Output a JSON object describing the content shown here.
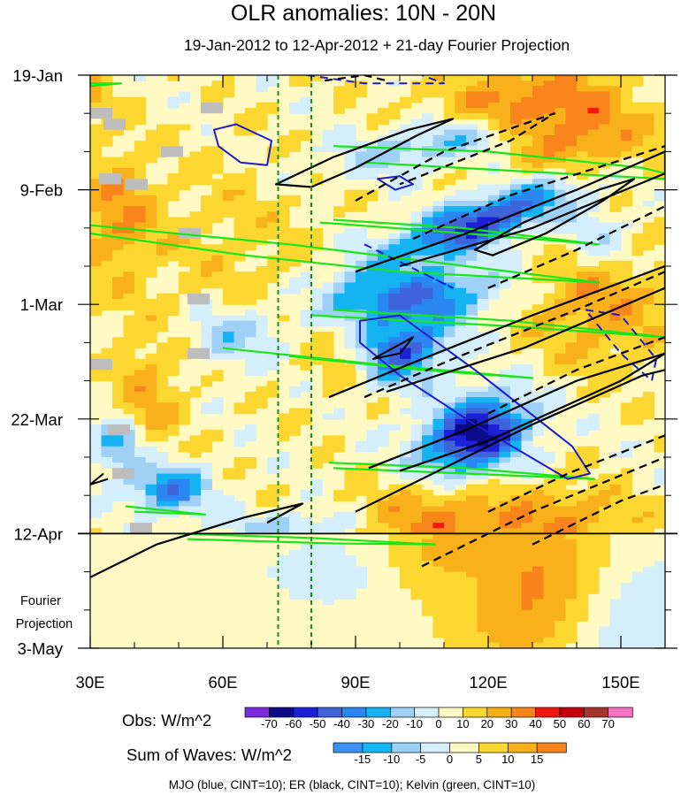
{
  "chart_data": {
    "type": "heatmap",
    "title": "OLR anomalies: 10N - 20N",
    "subtitle": "19-Jan-2012 to 12-Apr-2012 + 21-day Fourier Projection",
    "x_axis": {
      "range": [
        30,
        160
      ],
      "ticks": [
        30,
        60,
        90,
        120,
        150
      ],
      "tick_labels": [
        "30E",
        "60E",
        "90E",
        "120E",
        "150E"
      ]
    },
    "y_axis": {
      "range_days": [
        0,
        105
      ],
      "ticks": [
        {
          "day": 0,
          "label": "19-Jan"
        },
        {
          "day": 21,
          "label": "9-Feb"
        },
        {
          "day": 42,
          "label": "1-Mar"
        },
        {
          "day": 63,
          "label": "22-Mar"
        },
        {
          "day": 84,
          "label": "12-Apr"
        },
        {
          "day": 105,
          "label": "3-May"
        }
      ]
    },
    "projection_start_day": 84,
    "projection_label": [
      "Fourier",
      "Projection"
    ],
    "reference_lines_lon": [
      72.5,
      80
    ],
    "obs_colorbar": {
      "label": "Obs: W/m^2",
      "levels": [
        -70,
        -60,
        -50,
        -40,
        -30,
        -20,
        -10,
        0,
        10,
        20,
        30,
        40,
        50,
        60,
        70
      ],
      "colors": [
        "#7d2be2",
        "#0b0b8a",
        "#1b22d6",
        "#3f63d8",
        "#2a86f0",
        "#15b3f2",
        "#9fd0f5",
        "#d4eefb",
        "#fffac4",
        "#fcd731",
        "#f8b11a",
        "#f8851c",
        "#f31712",
        "#c3000b",
        "#a3352a",
        "#f573c1"
      ]
    },
    "waves_colorbar": {
      "label": "Sum of Waves: W/m^2",
      "levels": [
        -15,
        -10,
        -5,
        0,
        5,
        10,
        15
      ],
      "colors": [
        "#3a91f3",
        "#12b6f2",
        "#97d1f5",
        "#d4eefb",
        "#fffac4",
        "#fcd731",
        "#f8b11a",
        "#f7831b"
      ]
    },
    "footer": "MJO (blue, CINT=10); ER (black, CINT=10); Kelvin (green, CINT=10)",
    "series": [
      {
        "name": "MJO",
        "color": "#1c1ccc",
        "cint": 10
      },
      {
        "name": "ER",
        "color": "#000000",
        "cint": 10
      },
      {
        "name": "Kelvin",
        "color": "#19e619",
        "cint": 10
      }
    ]
  }
}
